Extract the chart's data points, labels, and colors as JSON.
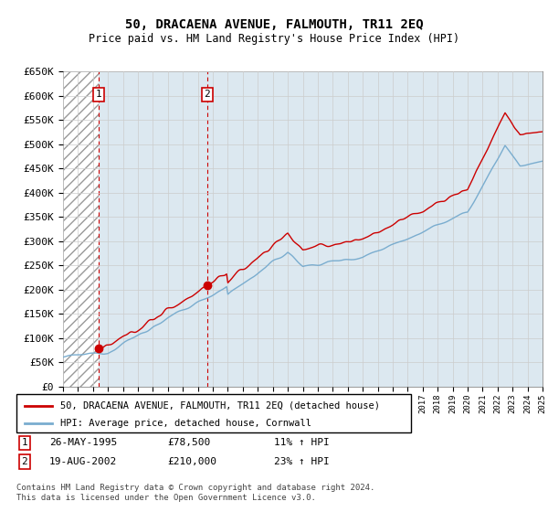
{
  "title": "50, DRACAENA AVENUE, FALMOUTH, TR11 2EQ",
  "subtitle": "Price paid vs. HM Land Registry's House Price Index (HPI)",
  "legend_line1": "50, DRACAENA AVENUE, FALMOUTH, TR11 2EQ (detached house)",
  "legend_line2": "HPI: Average price, detached house, Cornwall",
  "sale1_label": "1",
  "sale1_date": "26-MAY-1995",
  "sale1_price": "£78,500",
  "sale1_hpi": "11% ↑ HPI",
  "sale1_year": 1995.38,
  "sale1_value": 78500,
  "sale2_label": "2",
  "sale2_date": "19-AUG-2002",
  "sale2_price": "£210,000",
  "sale2_hpi": "23% ↑ HPI",
  "sale2_year": 2002.63,
  "sale2_value": 210000,
  "ylim": [
    0,
    650000
  ],
  "xlim_start": 1993,
  "xlim_end": 2025,
  "line_color_red": "#cc0000",
  "line_color_blue": "#7aadcf",
  "background_blue": "#dce8f0",
  "grid_color": "#cccccc",
  "footer": "Contains HM Land Registry data © Crown copyright and database right 2024.\nThis data is licensed under the Open Government Licence v3.0."
}
